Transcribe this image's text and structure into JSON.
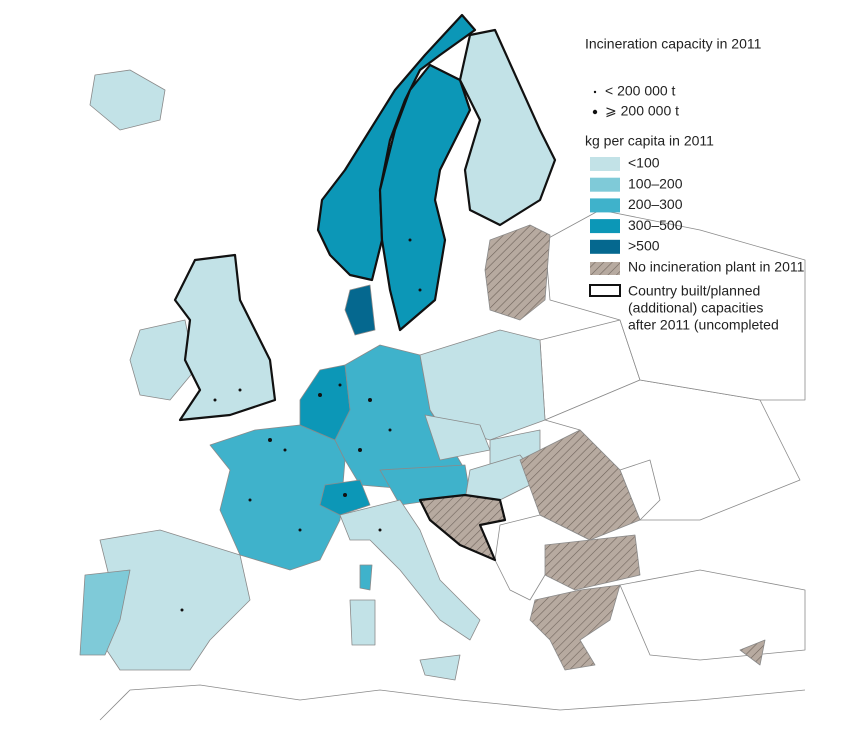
{
  "title": "Incineration capacity in 2011",
  "capacity_legend": [
    "< 200 000 t",
    "⩾ 200 000 t"
  ],
  "per_capita_legend": {
    "title": "kg per capita in 2011",
    "classes": [
      {
        "label": "<100",
        "color": "#c2e2e7"
      },
      {
        "label": "100–200",
        "color": "#7fcad8"
      },
      {
        "label": "200–300",
        "color": "#3fb2cb"
      },
      {
        "label": "300–500",
        "color": "#0c97b7"
      },
      {
        "label": ">500",
        "color": "#05688f"
      }
    ]
  },
  "no_plant": {
    "label": "No incineration plant in 2011",
    "color": "#b7aaa0"
  },
  "planned": {
    "lines": [
      "Country built/planned",
      "(additional) capacities",
      "after 2011 (uncompleted"
    ]
  }
}
